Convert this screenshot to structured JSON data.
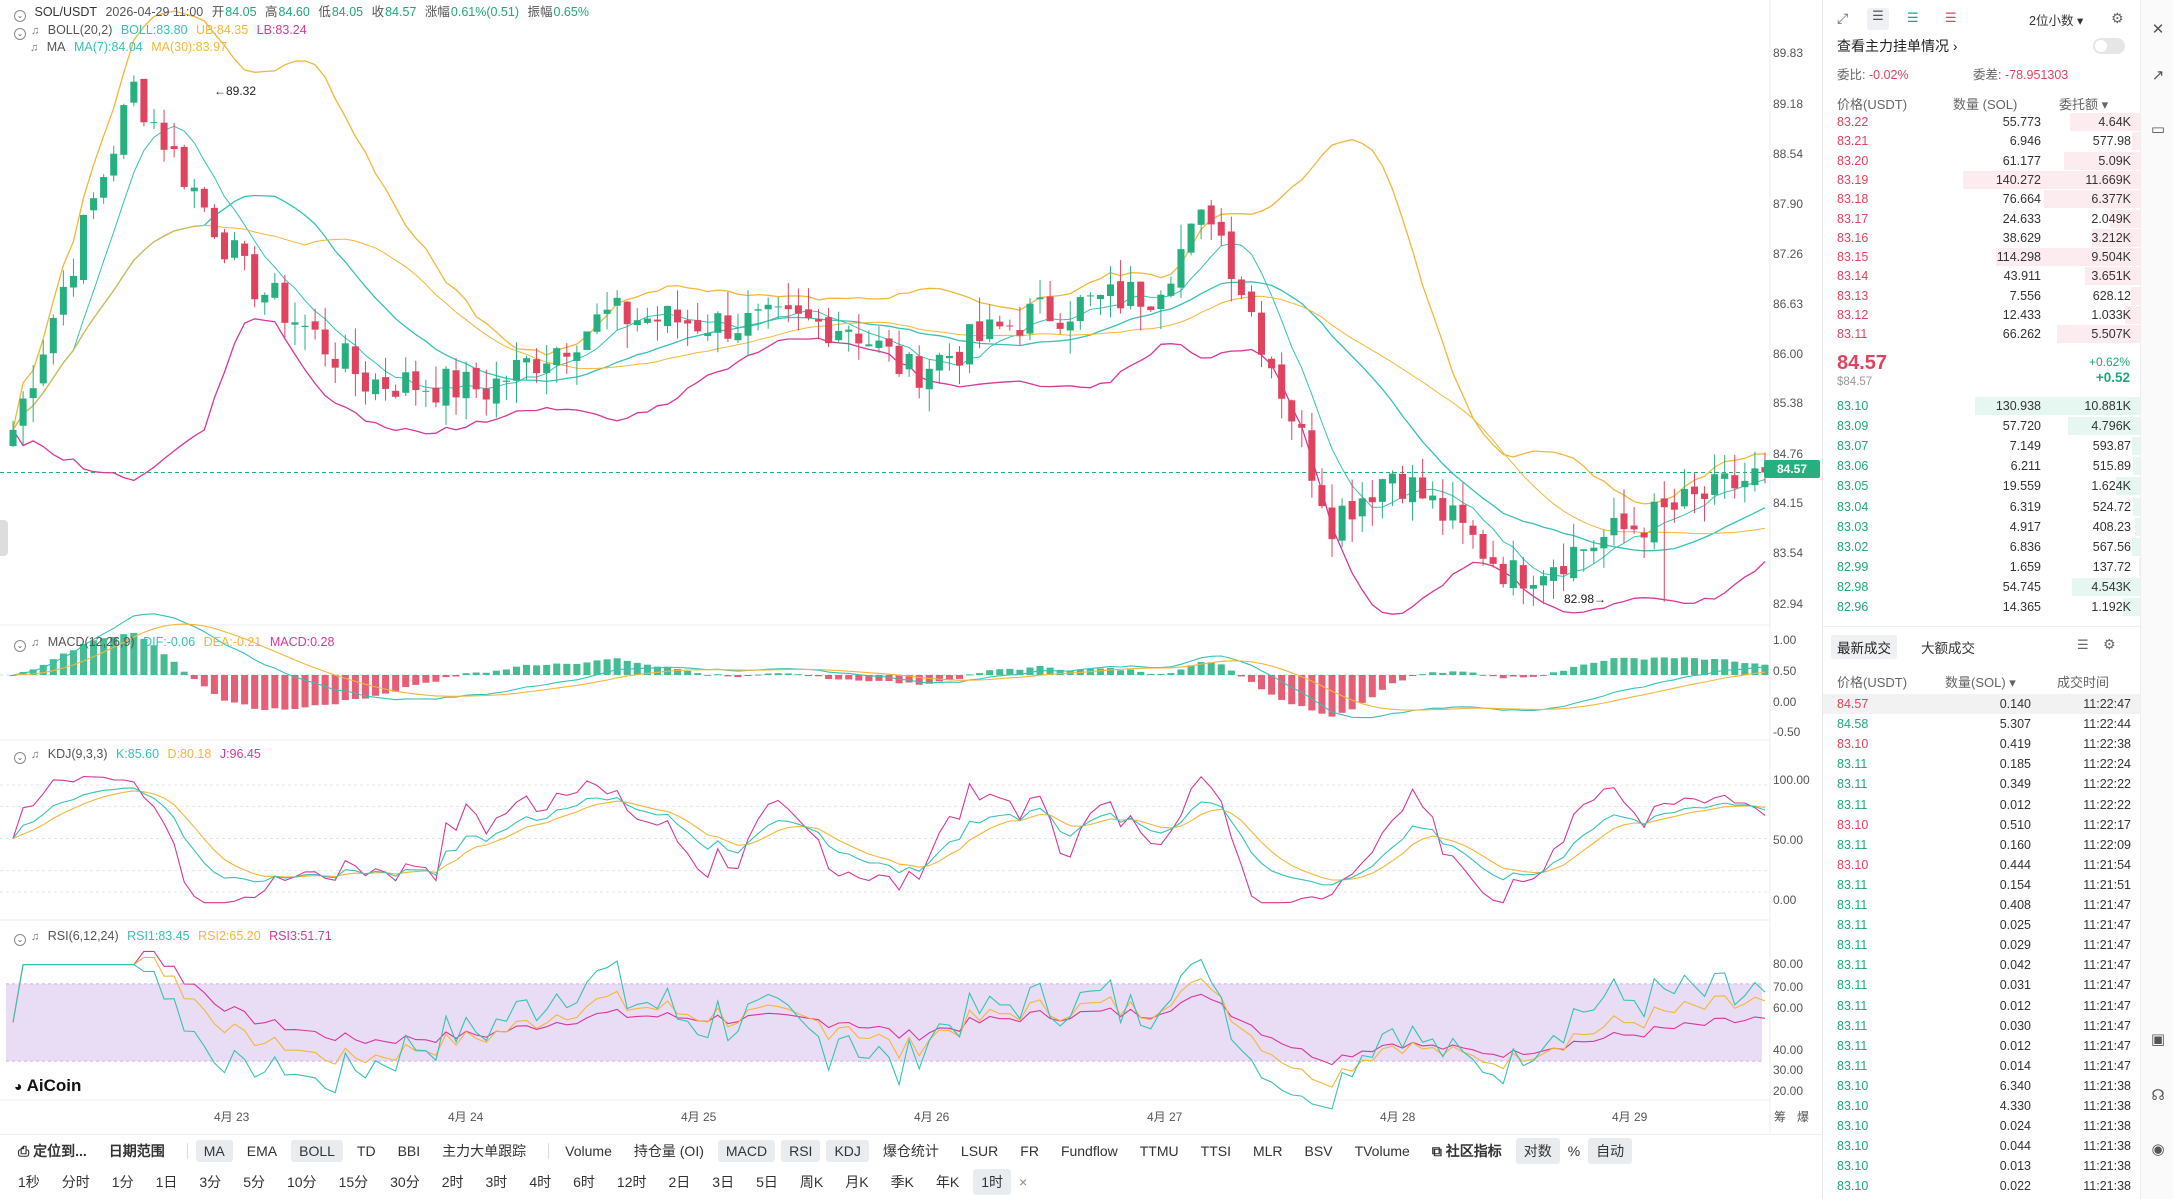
{
  "header": {
    "symbol": "SOL/USDT",
    "datetime": "2026-04-29 11:00",
    "open_label": "开",
    "open": "84.05",
    "high_label": "高",
    "high": "84.60",
    "low_label": "低",
    "low": "84.05",
    "close_label": "收",
    "close": "84.57",
    "change_label": "涨幅",
    "change": "0.61%(0.51)",
    "amp_label": "振幅",
    "amp": "0.65%"
  },
  "indicators": {
    "boll": {
      "name": "BOLL(20,2)",
      "boll": "BOLL:83.80",
      "ub": "UB:84.35",
      "lb": "LB:83.24"
    },
    "ma": {
      "name": "MA",
      "ma7": "MA(7):84.04",
      "ma30": "MA(30):83.97"
    },
    "macd": {
      "name": "MACD(12,26,9)",
      "dif": "DIF:-0.06",
      "dea": "DEA:-0.21",
      "macd": "MACD:0.28"
    },
    "kdj": {
      "name": "KDJ(9,3,3)",
      "k": "K:85.60",
      "d": "D:80.18",
      "j": "J:96.45"
    },
    "rsi": {
      "name": "RSI(6,12,24)",
      "r1": "RSI1:83.45",
      "r2": "RSI2:65.20",
      "r3": "RSI3:51.71"
    }
  },
  "colors": {
    "up": "#26b07f",
    "down": "#e0435f",
    "ub": "#f4b63a",
    "lb": "#d8379a",
    "mid": "#36c2b4",
    "ma30": "#f4b63a"
  },
  "price_axis": [
    "89.83",
    "89.18",
    "88.54",
    "87.90",
    "87.26",
    "86.63",
    "86.00",
    "85.38",
    "84.76",
    "84.15",
    "83.54",
    "82.94"
  ],
  "macd_axis": [
    "1.00",
    "0.50",
    "0.00",
    "-0.50"
  ],
  "kdj_axis": [
    "100.00",
    "50.00",
    "0.00"
  ],
  "rsi_axis": [
    "80.00",
    "70.00",
    "60.00",
    "40.00",
    "30.00",
    "20.00"
  ],
  "current_price_tag": "84.57",
  "high_annotation": "89.32",
  "low_annotation": "82.98",
  "x_axis_labels": [
    "4月 23",
    "4月 24",
    "4月 25",
    "4月 26",
    "4月 27",
    "4月 28",
    "4月 29"
  ],
  "axis_corner": [
    "筹",
    "爆"
  ],
  "watermark": "AiCoin",
  "chart_data": {
    "type": "candlestick",
    "timeframe": "1时",
    "approx_close_path": [
      {
        "x": "4月 22 (start)",
        "close": 85.1
      },
      {
        "x": "4月 23 ~01:00",
        "close": 89.3
      },
      {
        "x": "4月 23 ~12:00",
        "close": 87.0
      },
      {
        "x": "4月 24 ~00:00",
        "close": 85.7
      },
      {
        "x": "4月 24 ~12:00",
        "close": 85.6
      },
      {
        "x": "4月 25 ~00:00",
        "close": 86.5
      },
      {
        "x": "4月 25 ~12:00",
        "close": 86.4
      },
      {
        "x": "4月 26 ~00:00",
        "close": 86.4
      },
      {
        "x": "4月 26 ~06:00",
        "close": 85.8
      },
      {
        "x": "4月 26 ~18:00",
        "close": 86.5
      },
      {
        "x": "4月 27 ~06:00",
        "close": 86.8
      },
      {
        "x": "4月 27 ~12:00",
        "close": 87.8
      },
      {
        "x": "4月 27 ~20:00",
        "close": 85.3
      },
      {
        "x": "4月 28 ~00:00",
        "close": 84.0
      },
      {
        "x": "4月 28 ~06:00",
        "close": 84.6
      },
      {
        "x": "4月 28 ~18:00",
        "close": 83.3
      },
      {
        "x": "4月 29 11:00",
        "close": 84.57
      }
    ],
    "high": 89.32,
    "low": 82.98,
    "last": 84.57,
    "ylim": [
      82.94,
      89.83
    ]
  },
  "toolbar_top": {
    "locate": "定位到...",
    "range": "日期范围",
    "items": [
      "MA",
      "EMA",
      "BOLL",
      "TD",
      "BBI",
      "主力大单跟踪"
    ],
    "sub_items": [
      "Volume",
      "持仓量 (OI)",
      "MACD",
      "RSI",
      "KDJ",
      "爆仓统计",
      "LSUR",
      "FR",
      "Fundflow",
      "TTMU",
      "TTSI",
      "MLR",
      "BSV",
      "TVolume"
    ],
    "community": "社区指标",
    "log": "对数",
    "pct": "%",
    "auto": "自动"
  },
  "toolbar_bottom": {
    "timeframes": [
      "1秒",
      "分时",
      "1分",
      "1日",
      "3分",
      "5分",
      "10分",
      "15分",
      "30分",
      "2时",
      "3时",
      "4时",
      "6时",
      "12时",
      "2日",
      "3日",
      "5日",
      "周K",
      "月K",
      "季K",
      "年K",
      "1时"
    ],
    "close": "×"
  },
  "orderbook": {
    "precision": "2位小数",
    "view_main": "查看主力挂单情况",
    "wei_bi_label": "委比:",
    "wei_bi": "-0.02%",
    "wei_cha_label": "委差:",
    "wei_cha": "-78.951303",
    "col_price": "价格(USDT)",
    "col_qty": "数量 (SOL)",
    "col_total": "委托额",
    "asks": [
      {
        "p": "83.22",
        "q": "55.773",
        "t": "4.64K"
      },
      {
        "p": "83.21",
        "q": "6.946",
        "t": "577.98"
      },
      {
        "p": "83.20",
        "q": "61.177",
        "t": "5.09K"
      },
      {
        "p": "83.19",
        "q": "140.272",
        "t": "11.669K"
      },
      {
        "p": "83.18",
        "q": "76.664",
        "t": "6.377K"
      },
      {
        "p": "83.17",
        "q": "24.633",
        "t": "2.049K"
      },
      {
        "p": "83.16",
        "q": "38.629",
        "t": "3.212K"
      },
      {
        "p": "83.15",
        "q": "114.298",
        "t": "9.504K"
      },
      {
        "p": "83.14",
        "q": "43.911",
        "t": "3.651K"
      },
      {
        "p": "83.13",
        "q": "7.556",
        "t": "628.12"
      },
      {
        "p": "83.12",
        "q": "12.433",
        "t": "1.033K"
      },
      {
        "p": "83.11",
        "q": "66.262",
        "t": "5.507K"
      }
    ],
    "last_price": "84.57",
    "last_sub": "$84.57",
    "last_change_pct": "+0.62%",
    "last_change": "+0.52",
    "bids": [
      {
        "p": "83.10",
        "q": "130.938",
        "t": "10.881K"
      },
      {
        "p": "83.09",
        "q": "57.720",
        "t": "4.796K"
      },
      {
        "p": "83.07",
        "q": "7.149",
        "t": "593.87"
      },
      {
        "p": "83.06",
        "q": "6.211",
        "t": "515.89"
      },
      {
        "p": "83.05",
        "q": "19.559",
        "t": "1.624K"
      },
      {
        "p": "83.04",
        "q": "6.319",
        "t": "524.72"
      },
      {
        "p": "83.03",
        "q": "4.917",
        "t": "408.23"
      },
      {
        "p": "83.02",
        "q": "6.836",
        "t": "567.56"
      },
      {
        "p": "82.99",
        "q": "1.659",
        "t": "137.72"
      },
      {
        "p": "82.98",
        "q": "54.745",
        "t": "4.543K"
      },
      {
        "p": "82.96",
        "q": "14.365",
        "t": "1.192K"
      }
    ]
  },
  "trades": {
    "tab_latest": "最新成交",
    "tab_large": "大额成交",
    "col_price": "价格(USDT)",
    "col_qty": "数量(SOL)",
    "col_time": "成交时间",
    "rows": [
      {
        "p": "84.57",
        "q": "0.140",
        "t": "11:22:47",
        "s": "ask"
      },
      {
        "p": "84.58",
        "q": "5.307",
        "t": "11:22:44",
        "s": "bid"
      },
      {
        "p": "83.10",
        "q": "0.419",
        "t": "11:22:38",
        "s": "ask"
      },
      {
        "p": "83.11",
        "q": "0.185",
        "t": "11:22:24",
        "s": "bid"
      },
      {
        "p": "83.11",
        "q": "0.349",
        "t": "11:22:22",
        "s": "bid"
      },
      {
        "p": "83.11",
        "q": "0.012",
        "t": "11:22:22",
        "s": "bid"
      },
      {
        "p": "83.10",
        "q": "0.510",
        "t": "11:22:17",
        "s": "ask"
      },
      {
        "p": "83.11",
        "q": "0.160",
        "t": "11:22:09",
        "s": "bid"
      },
      {
        "p": "83.10",
        "q": "0.444",
        "t": "11:21:54",
        "s": "ask"
      },
      {
        "p": "83.11",
        "q": "0.154",
        "t": "11:21:51",
        "s": "bid"
      },
      {
        "p": "83.11",
        "q": "0.408",
        "t": "11:21:47",
        "s": "bid"
      },
      {
        "p": "83.11",
        "q": "0.025",
        "t": "11:21:47",
        "s": "bid"
      },
      {
        "p": "83.11",
        "q": "0.029",
        "t": "11:21:47",
        "s": "bid"
      },
      {
        "p": "83.11",
        "q": "0.042",
        "t": "11:21:47",
        "s": "bid"
      },
      {
        "p": "83.11",
        "q": "0.031",
        "t": "11:21:47",
        "s": "bid"
      },
      {
        "p": "83.11",
        "q": "0.012",
        "t": "11:21:47",
        "s": "bid"
      },
      {
        "p": "83.11",
        "q": "0.030",
        "t": "11:21:47",
        "s": "bid"
      },
      {
        "p": "83.11",
        "q": "0.012",
        "t": "11:21:47",
        "s": "bid"
      },
      {
        "p": "83.11",
        "q": "0.014",
        "t": "11:21:47",
        "s": "bid"
      },
      {
        "p": "83.10",
        "q": "6.340",
        "t": "11:21:38",
        "s": "bid"
      },
      {
        "p": "83.10",
        "q": "4.330",
        "t": "11:21:38",
        "s": "bid"
      },
      {
        "p": "83.10",
        "q": "0.024",
        "t": "11:21:38",
        "s": "bid"
      },
      {
        "p": "83.10",
        "q": "0.044",
        "t": "11:21:38",
        "s": "bid"
      },
      {
        "p": "83.10",
        "q": "0.013",
        "t": "11:21:38",
        "s": "bid"
      },
      {
        "p": "83.10",
        "q": "0.022",
        "t": "11:21:38",
        "s": "bid"
      }
    ]
  }
}
